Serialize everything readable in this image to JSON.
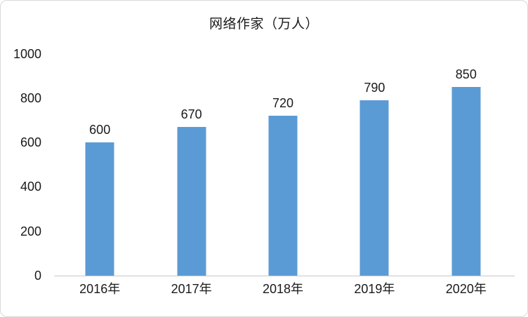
{
  "colors": {
    "bar": "#5B9BD5",
    "axis_line": "#C9C9C9",
    "border": "#D9D9D9",
    "text": "#1A1A1A",
    "background": "#FFFFFF"
  },
  "chart_data": {
    "type": "bar",
    "title": "网络作家（万人）",
    "categories": [
      "2016年",
      "2017年",
      "2018年",
      "2019年",
      "2020年"
    ],
    "values": [
      600,
      670,
      720,
      790,
      850
    ],
    "data_labels": [
      "600",
      "670",
      "720",
      "790",
      "850"
    ],
    "y_ticks": [
      0,
      200,
      400,
      600,
      800,
      1000
    ],
    "ylim": [
      0,
      1000
    ],
    "xlabel": "",
    "ylabel": "",
    "grid": false,
    "legend": false,
    "bar_color": "#5B9BD5"
  }
}
